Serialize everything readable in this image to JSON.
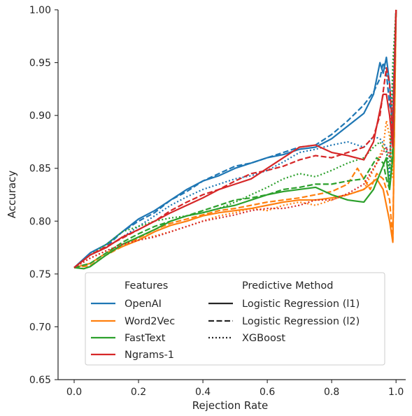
{
  "chart_data": {
    "type": "line",
    "title": "",
    "xlabel": "Rejection Rate",
    "ylabel": "Accuracy",
    "xlim": [
      -0.05,
      1.03
    ],
    "ylim": [
      0.65,
      1.0
    ],
    "xticks": [
      "0.0",
      "0.2",
      "0.4",
      "0.6",
      "0.8",
      "1.0"
    ],
    "yticks": [
      "0.65",
      "0.70",
      "0.75",
      "0.80",
      "0.85",
      "0.90",
      "0.95",
      "1.00"
    ],
    "grid": false,
    "legend": {
      "placement": "lower-center",
      "features_title": "Features",
      "method_title": "Predictive Method",
      "features": [
        {
          "label": "OpenAI",
          "color": "#1f77b4"
        },
        {
          "label": "Word2Vec",
          "color": "#ff7f0e"
        },
        {
          "label": "FastText",
          "color": "#2ca02c"
        },
        {
          "label": "Ngrams-1",
          "color": "#d62728"
        }
      ],
      "methods": [
        {
          "label": "Logistic Regression (l1)",
          "dash": "solid"
        },
        {
          "label": "Logistic Regression (l2)",
          "dash": "dashed"
        },
        {
          "label": "XGBoost",
          "dash": "dotted"
        }
      ]
    },
    "series": [
      {
        "feature": "OpenAI",
        "method": "Logistic Regression (l1)",
        "color": "#1f77b4",
        "dash": "solid",
        "x": [
          0.0,
          0.05,
          0.1,
          0.15,
          0.2,
          0.25,
          0.3,
          0.35,
          0.4,
          0.45,
          0.5,
          0.55,
          0.6,
          0.65,
          0.7,
          0.75,
          0.8,
          0.85,
          0.9,
          0.93,
          0.95,
          0.96,
          0.97,
          0.98,
          0.99,
          1.0
        ],
        "y": [
          0.756,
          0.77,
          0.778,
          0.79,
          0.802,
          0.81,
          0.82,
          0.83,
          0.838,
          0.843,
          0.85,
          0.855,
          0.86,
          0.863,
          0.868,
          0.87,
          0.878,
          0.89,
          0.902,
          0.92,
          0.95,
          0.94,
          0.955,
          0.93,
          0.88,
          1.0
        ]
      },
      {
        "feature": "OpenAI",
        "method": "Logistic Regression (l2)",
        "color": "#1f77b4",
        "dash": "dashed",
        "x": [
          0.0,
          0.05,
          0.1,
          0.15,
          0.2,
          0.25,
          0.3,
          0.35,
          0.4,
          0.45,
          0.5,
          0.55,
          0.6,
          0.65,
          0.7,
          0.75,
          0.8,
          0.85,
          0.9,
          0.93,
          0.95,
          0.96,
          0.97,
          0.98,
          0.99,
          1.0
        ],
        "y": [
          0.756,
          0.768,
          0.776,
          0.79,
          0.8,
          0.808,
          0.82,
          0.828,
          0.838,
          0.845,
          0.852,
          0.855,
          0.86,
          0.865,
          0.87,
          0.872,
          0.882,
          0.895,
          0.91,
          0.922,
          0.935,
          0.95,
          0.94,
          0.91,
          0.9,
          1.0
        ]
      },
      {
        "feature": "OpenAI",
        "method": "XGBoost",
        "color": "#1f77b4",
        "dash": "dotted",
        "x": [
          0.0,
          0.05,
          0.1,
          0.15,
          0.2,
          0.25,
          0.3,
          0.35,
          0.4,
          0.45,
          0.5,
          0.55,
          0.6,
          0.65,
          0.7,
          0.75,
          0.8,
          0.85,
          0.9,
          0.93,
          0.95,
          0.97,
          0.98,
          0.99,
          1.0
        ],
        "y": [
          0.756,
          0.768,
          0.775,
          0.785,
          0.795,
          0.805,
          0.815,
          0.823,
          0.83,
          0.835,
          0.84,
          0.843,
          0.848,
          0.856,
          0.865,
          0.868,
          0.872,
          0.875,
          0.87,
          0.88,
          0.878,
          0.87,
          0.84,
          0.93,
          1.0
        ]
      },
      {
        "feature": "Word2Vec",
        "method": "Logistic Regression (l1)",
        "color": "#ff7f0e",
        "dash": "solid",
        "x": [
          0.0,
          0.05,
          0.1,
          0.15,
          0.2,
          0.25,
          0.3,
          0.35,
          0.4,
          0.45,
          0.5,
          0.55,
          0.6,
          0.65,
          0.7,
          0.75,
          0.8,
          0.85,
          0.9,
          0.92,
          0.94,
          0.96,
          0.98,
          0.99,
          1.0
        ],
        "y": [
          0.756,
          0.76,
          0.77,
          0.776,
          0.782,
          0.79,
          0.796,
          0.8,
          0.805,
          0.808,
          0.81,
          0.812,
          0.815,
          0.818,
          0.82,
          0.82,
          0.822,
          0.825,
          0.83,
          0.835,
          0.84,
          0.83,
          0.8,
          0.78,
          1.0
        ]
      },
      {
        "feature": "Word2Vec",
        "method": "Logistic Regression (l2)",
        "color": "#ff7f0e",
        "dash": "dashed",
        "x": [
          0.0,
          0.05,
          0.1,
          0.15,
          0.2,
          0.25,
          0.3,
          0.35,
          0.4,
          0.45,
          0.5,
          0.55,
          0.6,
          0.65,
          0.7,
          0.75,
          0.8,
          0.85,
          0.88,
          0.9,
          0.92,
          0.94,
          0.96,
          0.98,
          0.99,
          1.0
        ],
        "y": [
          0.756,
          0.758,
          0.768,
          0.776,
          0.784,
          0.792,
          0.798,
          0.802,
          0.806,
          0.81,
          0.812,
          0.815,
          0.818,
          0.82,
          0.822,
          0.825,
          0.828,
          0.835,
          0.85,
          0.84,
          0.83,
          0.845,
          0.84,
          0.82,
          0.782,
          1.0
        ]
      },
      {
        "feature": "Word2Vec",
        "method": "XGBoost",
        "color": "#ff7f0e",
        "dash": "dotted",
        "x": [
          0.0,
          0.05,
          0.1,
          0.15,
          0.2,
          0.25,
          0.3,
          0.35,
          0.4,
          0.45,
          0.5,
          0.55,
          0.6,
          0.65,
          0.7,
          0.75,
          0.8,
          0.85,
          0.9,
          0.94,
          0.96,
          0.97,
          0.98,
          0.99,
          1.0
        ],
        "y": [
          0.756,
          0.765,
          0.772,
          0.778,
          0.782,
          0.786,
          0.79,
          0.795,
          0.8,
          0.805,
          0.808,
          0.812,
          0.81,
          0.815,
          0.818,
          0.815,
          0.82,
          0.825,
          0.83,
          0.855,
          0.87,
          0.895,
          0.88,
          0.84,
          1.0
        ]
      },
      {
        "feature": "FastText",
        "method": "Logistic Regression (l1)",
        "color": "#2ca02c",
        "dash": "solid",
        "x": [
          0.0,
          0.03,
          0.05,
          0.1,
          0.15,
          0.2,
          0.25,
          0.3,
          0.35,
          0.4,
          0.45,
          0.5,
          0.55,
          0.6,
          0.65,
          0.7,
          0.75,
          0.8,
          0.85,
          0.9,
          0.93,
          0.95,
          0.97,
          0.98,
          0.99,
          1.0
        ],
        "y": [
          0.756,
          0.755,
          0.757,
          0.768,
          0.778,
          0.785,
          0.792,
          0.8,
          0.805,
          0.808,
          0.812,
          0.815,
          0.82,
          0.825,
          0.828,
          0.83,
          0.832,
          0.825,
          0.82,
          0.818,
          0.83,
          0.845,
          0.86,
          0.83,
          0.86,
          1.0
        ]
      },
      {
        "feature": "FastText",
        "method": "Logistic Regression (l2)",
        "color": "#2ca02c",
        "dash": "dashed",
        "x": [
          0.0,
          0.05,
          0.1,
          0.15,
          0.2,
          0.25,
          0.3,
          0.35,
          0.4,
          0.45,
          0.5,
          0.55,
          0.6,
          0.65,
          0.7,
          0.75,
          0.8,
          0.85,
          0.9,
          0.92,
          0.94,
          0.96,
          0.97,
          0.98,
          0.99,
          1.0
        ],
        "y": [
          0.756,
          0.76,
          0.77,
          0.78,
          0.788,
          0.795,
          0.8,
          0.805,
          0.81,
          0.815,
          0.82,
          0.822,
          0.825,
          0.83,
          0.832,
          0.835,
          0.835,
          0.838,
          0.84,
          0.85,
          0.86,
          0.855,
          0.84,
          0.83,
          0.87,
          1.0
        ]
      },
      {
        "feature": "FastText",
        "method": "XGBoost",
        "color": "#2ca02c",
        "dash": "dotted",
        "x": [
          0.0,
          0.05,
          0.1,
          0.15,
          0.2,
          0.25,
          0.3,
          0.35,
          0.4,
          0.45,
          0.5,
          0.55,
          0.6,
          0.65,
          0.7,
          0.75,
          0.8,
          0.85,
          0.9,
          0.93,
          0.95,
          0.97,
          0.98,
          0.99,
          1.0
        ],
        "y": [
          0.756,
          0.768,
          0.778,
          0.79,
          0.795,
          0.8,
          0.803,
          0.805,
          0.808,
          0.812,
          0.818,
          0.825,
          0.832,
          0.84,
          0.845,
          0.842,
          0.848,
          0.855,
          0.86,
          0.87,
          0.875,
          0.865,
          0.85,
          0.95,
          1.0
        ]
      },
      {
        "feature": "Ngrams-1",
        "method": "Logistic Regression (l1)",
        "color": "#d62728",
        "dash": "solid",
        "x": [
          0.0,
          0.05,
          0.1,
          0.15,
          0.2,
          0.25,
          0.3,
          0.35,
          0.4,
          0.45,
          0.5,
          0.55,
          0.6,
          0.65,
          0.7,
          0.75,
          0.8,
          0.85,
          0.9,
          0.93,
          0.95,
          0.96,
          0.97,
          0.98,
          0.99,
          1.0
        ],
        "y": [
          0.756,
          0.768,
          0.775,
          0.785,
          0.792,
          0.8,
          0.808,
          0.815,
          0.822,
          0.83,
          0.835,
          0.84,
          0.85,
          0.86,
          0.87,
          0.872,
          0.865,
          0.862,
          0.858,
          0.875,
          0.905,
          0.92,
          0.92,
          0.9,
          0.87,
          1.0
        ]
      },
      {
        "feature": "Ngrams-1",
        "method": "Logistic Regression (l2)",
        "color": "#d62728",
        "dash": "dashed",
        "x": [
          0.0,
          0.05,
          0.1,
          0.15,
          0.2,
          0.25,
          0.3,
          0.35,
          0.4,
          0.45,
          0.5,
          0.55,
          0.6,
          0.65,
          0.7,
          0.75,
          0.8,
          0.85,
          0.9,
          0.93,
          0.95,
          0.97,
          0.98,
          0.99,
          1.0
        ],
        "y": [
          0.756,
          0.768,
          0.776,
          0.784,
          0.792,
          0.8,
          0.81,
          0.818,
          0.825,
          0.83,
          0.838,
          0.845,
          0.848,
          0.852,
          0.858,
          0.862,
          0.86,
          0.865,
          0.87,
          0.88,
          0.9,
          0.945,
          0.93,
          0.88,
          1.0
        ]
      },
      {
        "feature": "Ngrams-1",
        "method": "XGBoost",
        "color": "#d62728",
        "dash": "dotted",
        "x": [
          0.0,
          0.05,
          0.1,
          0.15,
          0.2,
          0.25,
          0.3,
          0.35,
          0.4,
          0.45,
          0.5,
          0.55,
          0.6,
          0.65,
          0.7,
          0.75,
          0.8,
          0.85,
          0.9,
          0.93,
          0.95,
          0.97,
          0.98,
          0.99,
          1.0
        ],
        "y": [
          0.756,
          0.765,
          0.772,
          0.778,
          0.782,
          0.785,
          0.79,
          0.795,
          0.8,
          0.803,
          0.806,
          0.81,
          0.812,
          0.812,
          0.815,
          0.82,
          0.82,
          0.826,
          0.835,
          0.85,
          0.86,
          0.87,
          0.86,
          0.9,
          1.0
        ]
      }
    ]
  }
}
